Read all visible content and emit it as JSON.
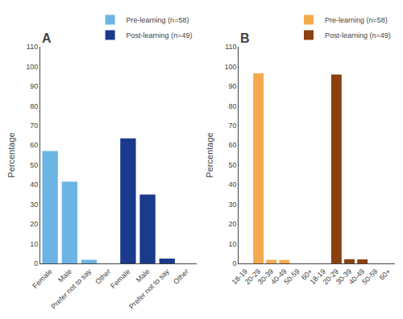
{
  "chart_data": [
    {
      "type": "bar",
      "title": "A",
      "ylabel": "Percentage",
      "categories": [
        "Female",
        "Male",
        "Prefer not to say",
        "Other",
        "Female",
        "Male",
        "Prefer not to say",
        "Other"
      ],
      "series": [
        {
          "name": "Pre-learning (n=58)",
          "color": "#6CB4E4",
          "values": [
            57,
            41.5,
            1.8,
            0,
            null,
            null,
            null,
            null
          ]
        },
        {
          "name": "Post-learning (n=49)",
          "color": "#1A3A8C",
          "values": [
            null,
            null,
            null,
            null,
            63.5,
            35,
            2.5,
            0
          ]
        }
      ],
      "ylim": [
        0,
        110
      ],
      "yticks": [
        0,
        10,
        20,
        30,
        40,
        50,
        60,
        70,
        80,
        90,
        100,
        110
      ],
      "legend": "upper right",
      "grid": false
    },
    {
      "type": "bar",
      "title": "B",
      "ylabel": "Percentage",
      "categories": [
        "18-19",
        "20-29",
        "30-39",
        "40-49",
        "50-59",
        "60+",
        "18-19",
        "20-29",
        "30-39",
        "40-49",
        "50-59",
        "60+"
      ],
      "series": [
        {
          "name": "Pre-learning (n=58)",
          "color": "#F5A94E",
          "values": [
            0,
            96.5,
            1.8,
            1.7,
            0,
            0,
            null,
            null,
            null,
            null,
            null,
            null
          ]
        },
        {
          "name": "Post-learning (n=49)",
          "color": "#8B4010",
          "values": [
            null,
            null,
            null,
            null,
            null,
            null,
            0,
            95.9,
            2.1,
            2.0,
            0,
            0
          ]
        }
      ],
      "ylim": [
        0,
        110
      ],
      "yticks": [
        0,
        10,
        20,
        30,
        40,
        50,
        60,
        70,
        80,
        90,
        100,
        110
      ],
      "legend": "upper right",
      "grid": false
    }
  ]
}
